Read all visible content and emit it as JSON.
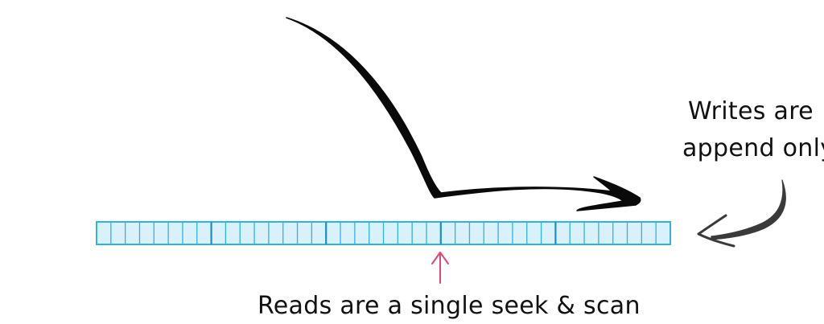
{
  "diagram": {
    "annotations": {
      "writes_line1": "Writes are",
      "writes_line2": "append only",
      "reads": "Reads are a single seek & scan"
    },
    "log_strip": {
      "segments": 5,
      "cells_per_segment": 8
    },
    "colors": {
      "strip_fill": "#d8f1fa",
      "strip_stroke": "#2fb3e3",
      "segment_divider": "#1a8fc4",
      "read_arrow": "#e0457b",
      "ink": "#0a0a0a",
      "side_arrow": "#3a3a3a"
    },
    "icons": {
      "write_arrow": "curved-arrow-icon",
      "read_arrow": "up-arrow-icon",
      "side_arrow": "left-arrow-icon"
    }
  }
}
